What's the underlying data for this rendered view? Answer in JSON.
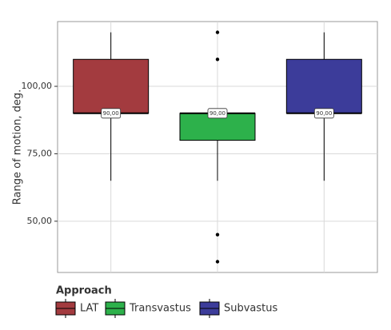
{
  "chart_data": {
    "type": "box",
    "y_label": "Range of motion, deg.",
    "legend_title": "Approach",
    "ylim": [
      31,
      124
    ],
    "yticks": [
      {
        "value": 50,
        "label": "50,00"
      },
      {
        "value": 75,
        "label": "75,00"
      },
      {
        "value": 100,
        "label": "100,00"
      }
    ],
    "grid": true,
    "series": [
      {
        "name": "LAT",
        "color": "#a33b3f",
        "min": 65,
        "q1": 90,
        "median": 90,
        "q3": 110,
        "max": 120,
        "outliers": [],
        "median_label": "90,00"
      },
      {
        "name": "Transvastus",
        "color": "#2db14b",
        "min": 65,
        "q1": 80,
        "median": 90,
        "q3": 90,
        "max": 90,
        "outliers": [
          120,
          110,
          45,
          35
        ],
        "median_label": "90,00"
      },
      {
        "name": "Subvastus",
        "color": "#3c3c9a",
        "min": 65,
        "q1": 90,
        "median": 90,
        "q3": 110,
        "max": 120,
        "outliers": [],
        "median_label": "90,00"
      }
    ]
  }
}
